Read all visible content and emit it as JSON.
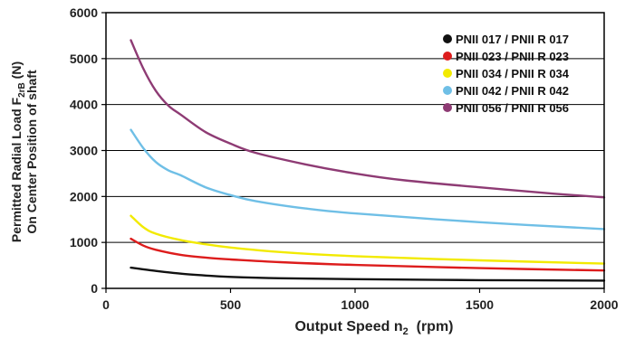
{
  "chart_data": {
    "type": "line",
    "xlabel": {
      "main": "Output Speed n",
      "sub": "2",
      "suffix": "  (rpm)"
    },
    "ylabel": {
      "line1_main": "Permitted Radial Load F",
      "line1_sub": "2rB",
      "line1_suffix": " (N)",
      "line2": "On Center Position of shaft"
    },
    "xlim": [
      0,
      2000
    ],
    "ylim": [
      0,
      6000
    ],
    "xticks": [
      0,
      500,
      1000,
      1500,
      2000
    ],
    "yticks": [
      0,
      1000,
      2000,
      3000,
      4000,
      5000,
      6000
    ],
    "grid": "horizontal",
    "legend_position": "top-right",
    "series": [
      {
        "name": "PNII 017 / PNII R 017",
        "color": "#111111",
        "x": [
          100,
          200,
          300,
          400,
          500,
          700,
          1000,
          1500,
          2000
        ],
        "y": [
          450,
          380,
          320,
          280,
          250,
          220,
          200,
          180,
          170
        ]
      },
      {
        "name": "PNII 023 / PNII R 023",
        "color": "#dd1c1c",
        "x": [
          100,
          150,
          200,
          300,
          400,
          500,
          700,
          1000,
          1500,
          2000
        ],
        "y": [
          1080,
          930,
          840,
          730,
          670,
          630,
          570,
          510,
          440,
          390
        ]
      },
      {
        "name": "PNII 034 / PNII R 034",
        "color": "#f2ea00",
        "x": [
          100,
          150,
          200,
          300,
          400,
          500,
          700,
          1000,
          1500,
          2000
        ],
        "y": [
          1580,
          1330,
          1190,
          1050,
          960,
          890,
          790,
          700,
          610,
          540
        ]
      },
      {
        "name": "PNII 042 / PNII R 042",
        "color": "#6fbfe6",
        "x": [
          100,
          150,
          200,
          250,
          300,
          400,
          500,
          600,
          800,
          1000,
          1500,
          2000
        ],
        "y": [
          3450,
          3050,
          2750,
          2570,
          2460,
          2200,
          2030,
          1900,
          1740,
          1630,
          1440,
          1290
        ]
      },
      {
        "name": "PNII 056 / PNII R 056",
        "color": "#8e3b74",
        "x": [
          100,
          150,
          200,
          250,
          300,
          400,
          500,
          600,
          800,
          1000,
          1200,
          1500,
          1800,
          2000
        ],
        "y": [
          5400,
          4780,
          4300,
          3980,
          3780,
          3400,
          3150,
          2950,
          2700,
          2500,
          2350,
          2200,
          2060,
          1980
        ]
      }
    ]
  }
}
